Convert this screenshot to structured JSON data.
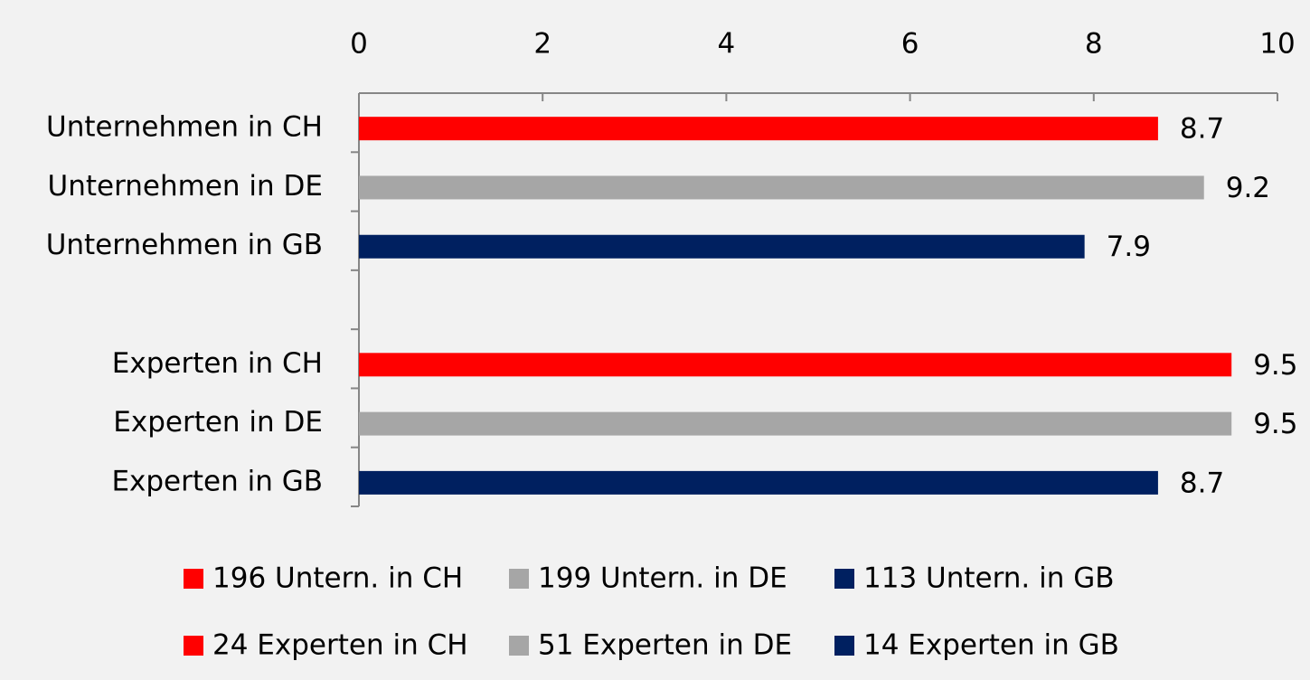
{
  "chart_data": {
    "type": "barh",
    "categories": [
      "Unternehmen in CH",
      "Unternehmen in DE",
      "Unternehmen in GB",
      null,
      "Experten in CH",
      "Experten in DE",
      "Experten in GB"
    ],
    "series": [
      {
        "name": "196 Untern. in CH",
        "color": "#ff0000",
        "values": [
          8.7,
          null,
          null,
          null,
          null,
          null,
          null
        ]
      },
      {
        "name": "199 Untern. in DE",
        "color": "#a6a6a6",
        "values": [
          null,
          9.2,
          null,
          null,
          null,
          null,
          null
        ]
      },
      {
        "name": "113 Untern. in GB",
        "color": "#002060",
        "values": [
          null,
          null,
          7.9,
          null,
          null,
          null,
          null
        ]
      },
      {
        "name": "24 Experten in CH",
        "color": "#ff0000",
        "values": [
          null,
          null,
          null,
          null,
          9.5,
          null,
          null
        ]
      },
      {
        "name": "51 Experten in DE",
        "color": "#a6a6a6",
        "values": [
          null,
          null,
          null,
          null,
          null,
          9.5,
          null
        ]
      },
      {
        "name": "14 Experten in GB",
        "color": "#002060",
        "values": [
          null,
          null,
          null,
          null,
          null,
          null,
          8.7
        ]
      }
    ],
    "xlim": [
      0,
      10
    ],
    "xticks": [
      0,
      2,
      4,
      6,
      8,
      10
    ],
    "grid": false
  }
}
